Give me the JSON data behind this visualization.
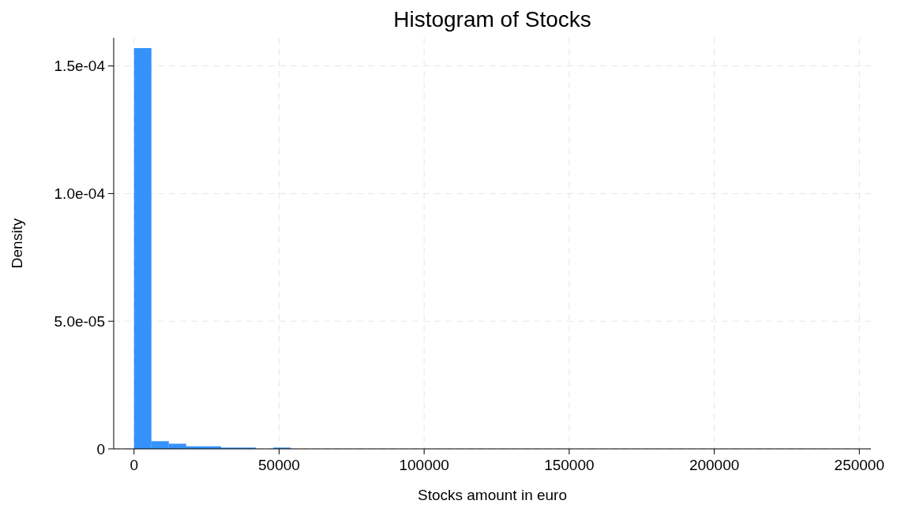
{
  "chart_data": {
    "type": "histogram",
    "title": "Histogram of Stocks",
    "xlabel": "Stocks amount in euro",
    "ylabel": "Density",
    "bins": [
      0,
      6000,
      12000,
      18000,
      24000,
      30000,
      36000,
      42000,
      48000,
      54000,
      60000,
      66000,
      72000,
      78000,
      84000,
      90000,
      96000,
      102000,
      108000,
      114000,
      120000,
      126000,
      132000,
      138000,
      144000,
      150000,
      156000,
      162000,
      168000,
      174000,
      180000,
      186000,
      192000,
      198000,
      204000,
      210000,
      216000,
      222000,
      228000,
      234000,
      240000,
      246000
    ],
    "values": [
      0.000157,
      3e-06,
      2e-06,
      1e-06,
      1e-06,
      5e-07,
      5e-07,
      0,
      5e-07,
      0,
      0,
      0,
      0,
      0,
      0,
      0,
      0,
      0,
      0,
      0,
      0,
      0,
      0,
      0,
      0,
      0,
      0,
      0,
      0,
      0,
      0,
      0,
      0,
      0,
      0,
      0,
      0,
      0,
      0,
      0,
      0
    ],
    "color": "#3592fd",
    "xlim": [
      -7000,
      254000
    ],
    "xticks": [
      0,
      50000,
      100000,
      150000,
      200000,
      250000
    ],
    "ylim": [
      0,
      0.000161
    ],
    "yticks": [
      {
        "value": 0,
        "label": "0"
      },
      {
        "value": 5e-05,
        "label": "5.0e-05"
      },
      {
        "value": 0.0001,
        "label": "1.0e-04"
      },
      {
        "value": 0.00015,
        "label": "1.5e-04"
      }
    ],
    "grid": true
  }
}
